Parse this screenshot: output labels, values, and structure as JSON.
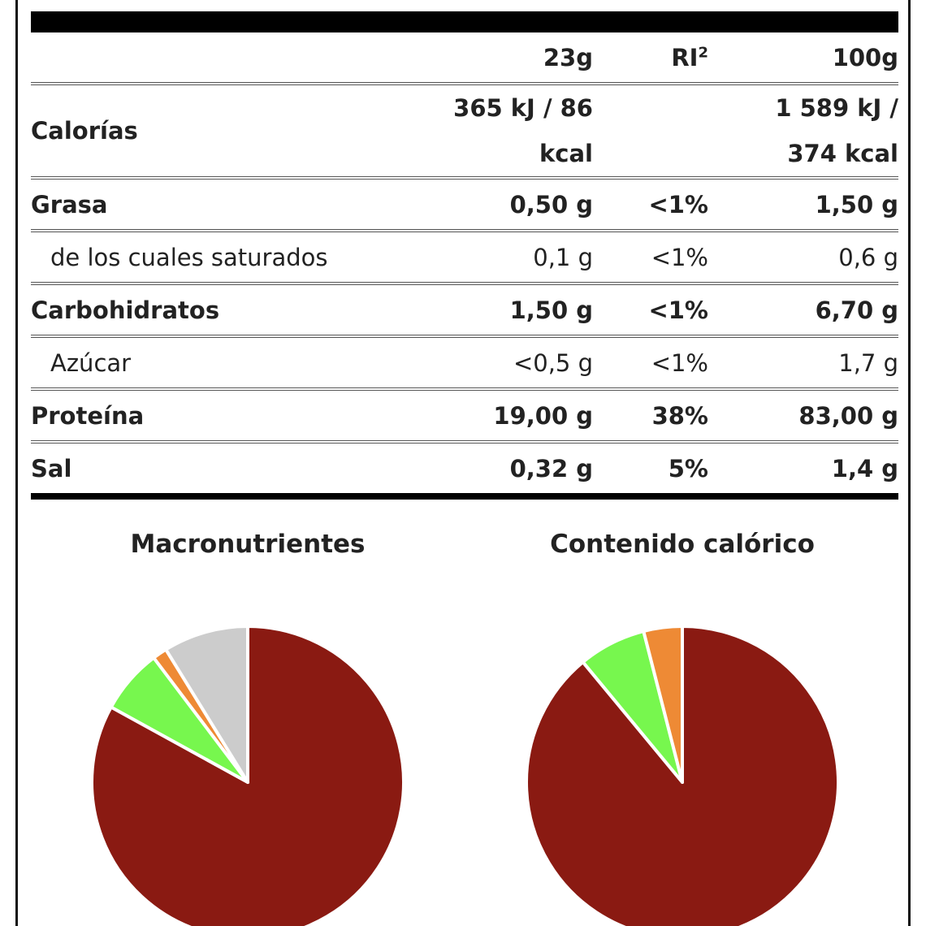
{
  "table": {
    "header": {
      "per_serving": "23g",
      "ri": "RI",
      "ri_note": "2",
      "per_100g": "100g"
    },
    "rows": [
      {
        "label": "Calorías",
        "serving": "365 kJ / 86 kcal",
        "per_100g": "1 589 kJ / 374 kcal"
      },
      {
        "label": "Grasa",
        "serving": "0,50 g",
        "ri": "<1%",
        "per_100g": "1,50 g"
      },
      {
        "label": "de los cuales saturados",
        "serving": "0,1 g",
        "ri": "<1%",
        "per_100g": "0,6 g",
        "indent": true
      },
      {
        "label": "Carbohidratos",
        "serving": "1,50 g",
        "ri": "<1%",
        "per_100g": "6,70 g"
      },
      {
        "label": "Azúcar",
        "serving": "<0,5 g",
        "ri": "<1%",
        "per_100g": "1,7 g",
        "indent": true
      },
      {
        "label": "Proteína",
        "serving": "19,00 g",
        "ri": "38%",
        "per_100g": "83,00 g"
      },
      {
        "label": "Sal",
        "serving": "0,32 g",
        "ri": "5%",
        "per_100g": "1,4 g"
      }
    ]
  },
  "chart_data": [
    {
      "type": "pie",
      "title": "Macronutrientes",
      "values": [
        83,
        6.7,
        1.5,
        8.8
      ],
      "colors": [
        "#8a1a12",
        "#77f74e",
        "#ee8a35",
        "#cccccc"
      ]
    },
    {
      "type": "pie",
      "title": "Contenido calórico",
      "values": [
        89,
        7,
        4
      ],
      "colors": [
        "#8a1a12",
        "#77f74e",
        "#ee8a35"
      ]
    }
  ]
}
